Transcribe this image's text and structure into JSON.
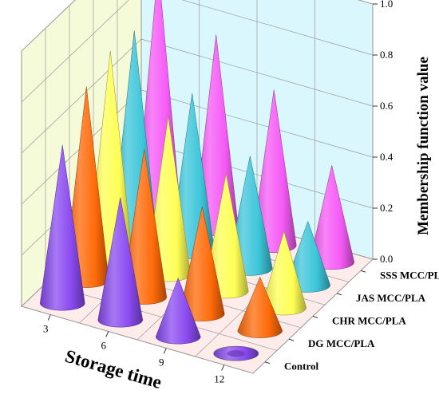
{
  "chart_data": {
    "type": "3d-cone",
    "title": "",
    "xlabel": "Storage time",
    "ylabel": "",
    "zlabel": "Membership function value",
    "zlim": [
      0,
      1.0
    ],
    "zticks": [
      "0.0",
      "0.2",
      "0.4",
      "0.6",
      "0.8",
      "1.0"
    ],
    "x": [
      "3",
      "6",
      "9",
      "12"
    ],
    "series": [
      {
        "name": "Control",
        "color": "#8a4af0",
        "values": [
          0.62,
          0.48,
          0.23,
          0.0
        ]
      },
      {
        "name": "DG MCC/PLA",
        "color": "#ff6a08",
        "values": [
          0.76,
          0.58,
          0.42,
          0.21
        ]
      },
      {
        "name": "CHR MCC/PLA",
        "color": "#ffff55",
        "values": [
          0.81,
          0.62,
          0.46,
          0.3
        ]
      },
      {
        "name": "JAS MCC/PLA",
        "color": "#3cc6da",
        "values": [
          0.8,
          0.62,
          0.44,
          0.25
        ]
      },
      {
        "name": "SSS MCC/PLA",
        "color": "#f55af5",
        "values": [
          0.96,
          0.76,
          0.61,
          0.38
        ]
      }
    ],
    "grid": true,
    "colors": {
      "back_wall": "#f5fbd8",
      "side_wall": "#d9f7fc",
      "floor": "#fdecea"
    }
  }
}
